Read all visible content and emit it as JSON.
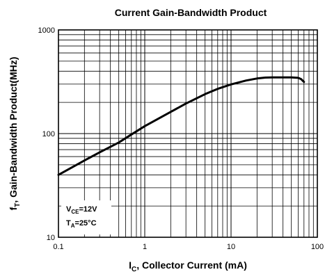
{
  "chart_data": {
    "type": "line",
    "title": "Current Gain-Bandwidth Product",
    "xlabel": {
      "main": "I",
      "sub": "C",
      "rest": ", Collector Current (mA)"
    },
    "ylabel": {
      "main": "f",
      "sub": "T",
      "rest": ", Gain-Bandwidth Product(MHz)"
    },
    "xscale": "log",
    "yscale": "log",
    "xlim": [
      0.1,
      100
    ],
    "ylim": [
      10,
      1000
    ],
    "x_ticks": [
      0.1,
      1,
      10,
      100
    ],
    "x_tick_labels": [
      "0.1",
      "1",
      "10",
      "100"
    ],
    "y_ticks": [
      10,
      100,
      1000
    ],
    "y_tick_labels": [
      "10",
      "100",
      "1000"
    ],
    "grid": true,
    "series": [
      {
        "x": [
          0.1,
          0.2,
          0.3,
          0.5,
          0.7,
          1,
          2,
          3,
          5,
          7,
          10,
          15,
          20,
          25,
          30,
          40,
          50,
          60,
          65,
          70
        ],
        "y": [
          40,
          55,
          66,
          82,
          98,
          118,
          162,
          195,
          240,
          270,
          298,
          325,
          340,
          347,
          348,
          348,
          348,
          345,
          335,
          315
        ]
      }
    ],
    "annotations": [
      {
        "main": "V",
        "sub": "CE",
        "rest": "=12V"
      },
      {
        "main": "T",
        "sub": "A",
        "rest": "=25°C"
      }
    ]
  }
}
